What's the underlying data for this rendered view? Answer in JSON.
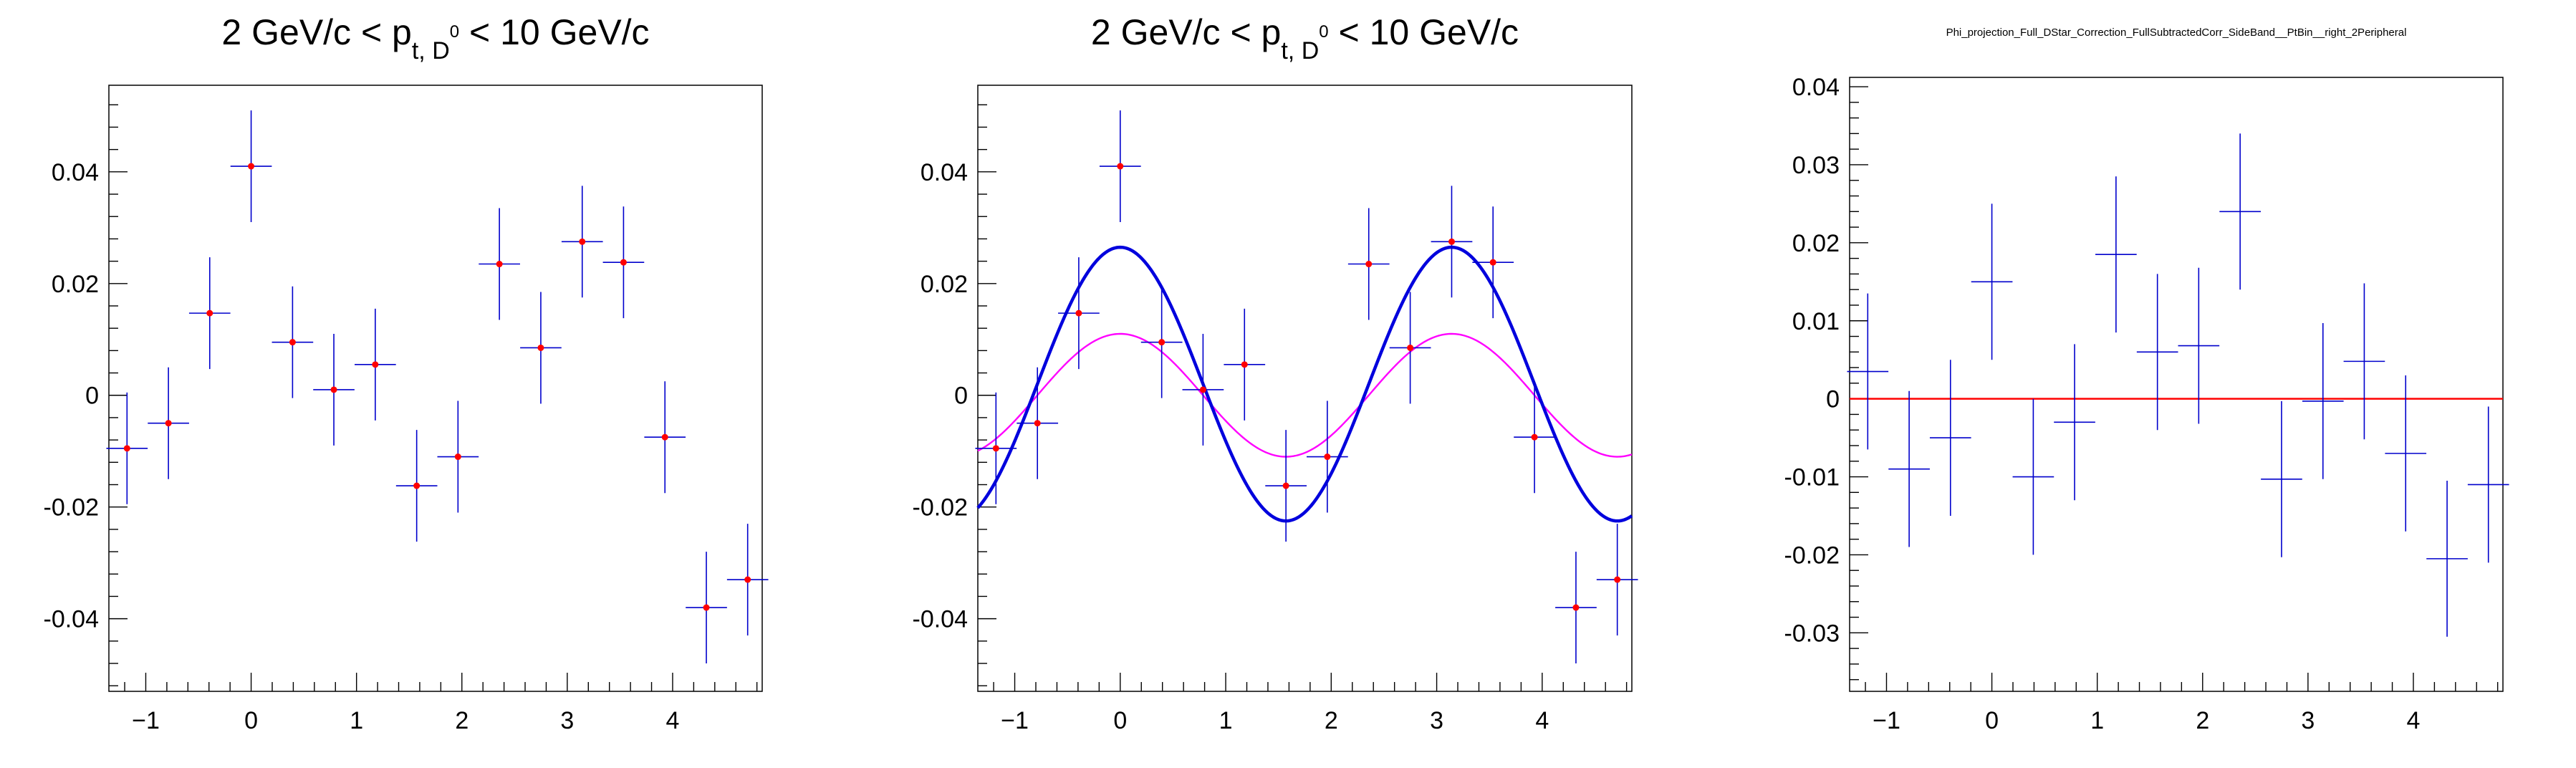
{
  "chart_data": [
    {
      "type": "scatter",
      "title_parts": {
        "pre": "2 GeV/c < p",
        "sub": "t, D",
        "sup": "0",
        "post": " < 10 GeV/c"
      },
      "xlim": [
        -1.35,
        4.85
      ],
      "ylim": [
        -0.053,
        0.0555
      ],
      "x_ticks": [
        -1,
        0,
        1,
        2,
        3,
        4
      ],
      "x_tick_labels": [
        "−1",
        "0",
        "1",
        "2",
        "3",
        "4"
      ],
      "y_ticks": [
        -0.04,
        -0.02,
        0,
        0.02,
        0.04
      ],
      "y_tick_labels": [
        "-0.04",
        "-0.02",
        "0",
        "0.02",
        "0.04"
      ],
      "series": [
        {
          "points": [
            {
              "x": -1.178,
              "y": -0.0095,
              "xerr": 0.196,
              "yerr": 0.01
            },
            {
              "x": -0.785,
              "y": -0.005,
              "xerr": 0.196,
              "yerr": 0.01
            },
            {
              "x": -0.393,
              "y": 0.0147,
              "xerr": 0.196,
              "yerr": 0.01
            },
            {
              "x": 0.0,
              "y": 0.041,
              "xerr": 0.196,
              "yerr": 0.01
            },
            {
              "x": 0.393,
              "y": 0.0095,
              "xerr": 0.196,
              "yerr": 0.01
            },
            {
              "x": 0.785,
              "y": 0.001,
              "xerr": 0.196,
              "yerr": 0.01
            },
            {
              "x": 1.178,
              "y": 0.0055,
              "xerr": 0.196,
              "yerr": 0.01
            },
            {
              "x": 1.571,
              "y": -0.0162,
              "xerr": 0.196,
              "yerr": 0.01
            },
            {
              "x": 1.963,
              "y": -0.011,
              "xerr": 0.196,
              "yerr": 0.01
            },
            {
              "x": 2.356,
              "y": 0.0235,
              "xerr": 0.196,
              "yerr": 0.01
            },
            {
              "x": 2.749,
              "y": 0.0085,
              "xerr": 0.196,
              "yerr": 0.01
            },
            {
              "x": 3.142,
              "y": 0.0275,
              "xerr": 0.196,
              "yerr": 0.01
            },
            {
              "x": 3.534,
              "y": 0.0238,
              "xerr": 0.196,
              "yerr": 0.01
            },
            {
              "x": 3.927,
              "y": -0.0075,
              "xerr": 0.196,
              "yerr": 0.01
            },
            {
              "x": 4.32,
              "y": -0.038,
              "xerr": 0.196,
              "yerr": 0.01
            },
            {
              "x": 4.712,
              "y": -0.033,
              "xerr": 0.196,
              "yerr": 0.01
            }
          ]
        }
      ],
      "marker_color": "#ff0000",
      "errorbar_color": "#0000cc",
      "curves": []
    },
    {
      "type": "scatter",
      "title_parts": {
        "pre": "2 GeV/c < p",
        "sub": "t, D",
        "sup": "0",
        "post": " < 10 GeV/c"
      },
      "xlim": [
        -1.35,
        4.85
      ],
      "ylim": [
        -0.053,
        0.0555
      ],
      "x_ticks": [
        -1,
        0,
        1,
        2,
        3,
        4
      ],
      "x_tick_labels": [
        "−1",
        "0",
        "1",
        "2",
        "3",
        "4"
      ],
      "y_ticks": [
        -0.04,
        -0.02,
        0,
        0.02,
        0.04
      ],
      "y_tick_labels": [
        "-0.04",
        "-0.02",
        "0",
        "0.02",
        "0.04"
      ],
      "series": [
        {
          "points": [
            {
              "x": -1.178,
              "y": -0.0095,
              "xerr": 0.196,
              "yerr": 0.01
            },
            {
              "x": -0.785,
              "y": -0.005,
              "xerr": 0.196,
              "yerr": 0.01
            },
            {
              "x": -0.393,
              "y": 0.0147,
              "xerr": 0.196,
              "yerr": 0.01
            },
            {
              "x": 0.0,
              "y": 0.041,
              "xerr": 0.196,
              "yerr": 0.01
            },
            {
              "x": 0.393,
              "y": 0.0095,
              "xerr": 0.196,
              "yerr": 0.01
            },
            {
              "x": 0.785,
              "y": 0.001,
              "xerr": 0.196,
              "yerr": 0.01
            },
            {
              "x": 1.178,
              "y": 0.0055,
              "xerr": 0.196,
              "yerr": 0.01
            },
            {
              "x": 1.571,
              "y": -0.0162,
              "xerr": 0.196,
              "yerr": 0.01
            },
            {
              "x": 1.963,
              "y": -0.011,
              "xerr": 0.196,
              "yerr": 0.01
            },
            {
              "x": 2.356,
              "y": 0.0235,
              "xerr": 0.196,
              "yerr": 0.01
            },
            {
              "x": 2.749,
              "y": 0.0085,
              "xerr": 0.196,
              "yerr": 0.01
            },
            {
              "x": 3.142,
              "y": 0.0275,
              "xerr": 0.196,
              "yerr": 0.01
            },
            {
              "x": 3.534,
              "y": 0.0238,
              "xerr": 0.196,
              "yerr": 0.01
            },
            {
              "x": 3.927,
              "y": -0.0075,
              "xerr": 0.196,
              "yerr": 0.01
            },
            {
              "x": 4.32,
              "y": -0.038,
              "xerr": 0.196,
              "yerr": 0.01
            },
            {
              "x": 4.712,
              "y": -0.033,
              "xerr": 0.196,
              "yerr": 0.01
            }
          ]
        }
      ],
      "marker_color": "#ff0000",
      "errorbar_color": "#0000cc",
      "curves": [
        {
          "color": "#ff00ff",
          "baseline": 0.0,
          "amplitude": 0.011,
          "harmonic": 2,
          "x_range": [
            -1.35,
            4.85
          ],
          "width": 2.4
        },
        {
          "color": "#0000dd",
          "baseline": 0.002,
          "amplitude": 0.0245,
          "harmonic": 2,
          "x_range": [
            -1.35,
            4.85
          ],
          "width": 4.5
        }
      ]
    },
    {
      "type": "scatter",
      "title": "Phi_projection_Full_DStar_Correction_FullSubtractedCorr_SideBand__PtBin__right_2Peripheral",
      "xlim": [
        -1.35,
        4.85
      ],
      "ylim": [
        -0.0375,
        0.0412
      ],
      "x_ticks": [
        -1,
        0,
        1,
        2,
        3,
        4
      ],
      "x_tick_labels": [
        "−1",
        "0",
        "1",
        "2",
        "3",
        "4"
      ],
      "y_ticks": [
        -0.03,
        -0.02,
        -0.01,
        0,
        0.01,
        0.02,
        0.03,
        0.04
      ],
      "y_tick_labels": [
        "-0.03",
        "-0.02",
        "-0.01",
        "0",
        "0.01",
        "0.02",
        "0.03",
        "0.04"
      ],
      "series": [
        {
          "points": [
            {
              "x": -1.178,
              "y": 0.0035,
              "xerr": 0.196,
              "yerr": 0.01
            },
            {
              "x": -0.785,
              "y": -0.009,
              "xerr": 0.196,
              "yerr": 0.01
            },
            {
              "x": -0.393,
              "y": -0.005,
              "xerr": 0.196,
              "yerr": 0.01
            },
            {
              "x": 0.0,
              "y": 0.015,
              "xerr": 0.196,
              "yerr": 0.01
            },
            {
              "x": 0.393,
              "y": -0.01,
              "xerr": 0.196,
              "yerr": 0.01
            },
            {
              "x": 0.785,
              "y": -0.003,
              "xerr": 0.196,
              "yerr": 0.01
            },
            {
              "x": 1.178,
              "y": 0.0185,
              "xerr": 0.196,
              "yerr": 0.01
            },
            {
              "x": 1.571,
              "y": 0.006,
              "xerr": 0.196,
              "yerr": 0.01
            },
            {
              "x": 1.963,
              "y": 0.0068,
              "xerr": 0.196,
              "yerr": 0.01
            },
            {
              "x": 2.356,
              "y": 0.024,
              "xerr": 0.196,
              "yerr": 0.01
            },
            {
              "x": 2.749,
              "y": -0.0103,
              "xerr": 0.196,
              "yerr": 0.01
            },
            {
              "x": 3.142,
              "y": -0.0003,
              "xerr": 0.196,
              "yerr": 0.01
            },
            {
              "x": 3.534,
              "y": 0.0048,
              "xerr": 0.196,
              "yerr": 0.01
            },
            {
              "x": 3.927,
              "y": -0.007,
              "xerr": 0.196,
              "yerr": 0.01
            },
            {
              "x": 4.32,
              "y": -0.0205,
              "xerr": 0.196,
              "yerr": 0.01
            },
            {
              "x": 4.712,
              "y": -0.011,
              "xerr": 0.196,
              "yerr": 0.01
            }
          ]
        }
      ],
      "marker_color": "",
      "errorbar_color": "#0000cc",
      "curves": [],
      "hlines": [
        {
          "y": 0,
          "color": "#ff0000"
        }
      ]
    }
  ]
}
